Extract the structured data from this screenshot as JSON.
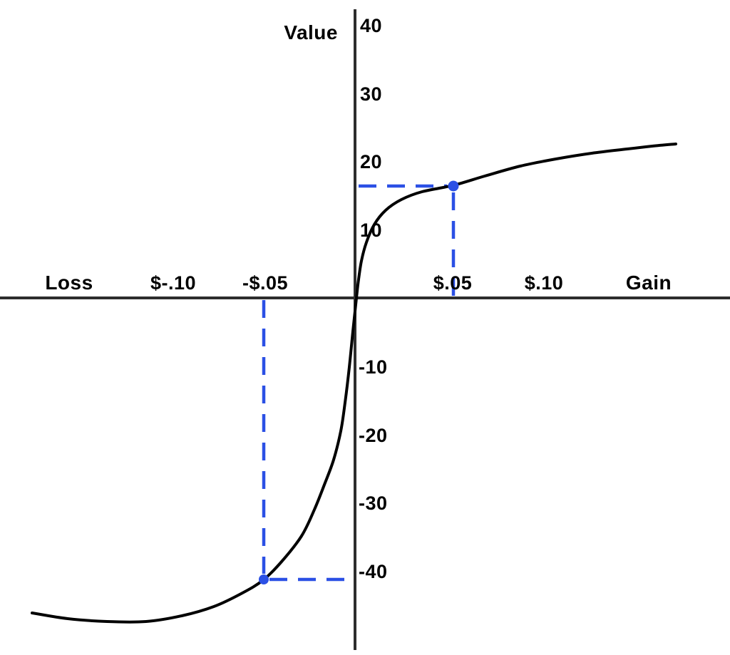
{
  "chart_data": {
    "type": "line",
    "description": "S-shaped value function curve: concave for gains, convex and steeper for losses, with blue dashed guides marking the value of a $.05 gain versus a $.05 loss",
    "ylabel": "Value",
    "x_axis_left_label": "Loss",
    "x_axis_right_label": "Gain",
    "x_tick_labels": [
      "$-.10",
      "-$.05",
      "$.05",
      "$.10"
    ],
    "y_tick_labels": [
      "40",
      "30",
      "20",
      "10",
      "-10",
      "-20",
      "-30",
      "-40"
    ],
    "y_tick_values": [
      40,
      30,
      20,
      10,
      -10,
      -20,
      -30,
      -40
    ],
    "y_axis_range": [
      -50,
      40
    ],
    "x_axis_range_dollars": [
      -0.18,
      0.17
    ],
    "grid": false,
    "legend": false,
    "series": [
      {
        "name": "value-function-curve",
        "color": "#000000",
        "points_dollars_vs_value": [
          [
            -0.175,
            -46
          ],
          [
            -0.15,
            -47
          ],
          [
            -0.125,
            -47.5
          ],
          [
            -0.1,
            -46.9
          ],
          [
            -0.075,
            -44.9
          ],
          [
            -0.06,
            -43.2
          ],
          [
            -0.05,
            -41.5
          ],
          [
            -0.04,
            -38.5
          ],
          [
            -0.03,
            -34.5
          ],
          [
            -0.02,
            -29
          ],
          [
            -0.01,
            -21
          ],
          [
            -0.005,
            -13
          ],
          [
            0,
            0
          ],
          [
            0.005,
            7
          ],
          [
            0.01,
            10
          ],
          [
            0.02,
            13
          ],
          [
            0.03,
            14.7
          ],
          [
            0.05,
            16.5
          ],
          [
            0.07,
            18.2
          ],
          [
            0.1,
            20.2
          ],
          [
            0.125,
            21.3
          ],
          [
            0.15,
            22
          ],
          [
            0.17,
            22.6
          ]
        ]
      }
    ],
    "annotations": [
      {
        "label": "gain point",
        "x_dollars": 0.05,
        "value": 16.5,
        "style": "blue dashed guides to both axes with solid dot"
      },
      {
        "label": "loss point",
        "x_dollars": -0.05,
        "value": -41.5,
        "style": "blue dashed guides to both axes with solid dot"
      }
    ],
    "colors": {
      "guide": "#2b50e5",
      "curve": "#000000",
      "axis": "#2d2d2d",
      "text": "#000000",
      "background": "#ffffff"
    }
  }
}
